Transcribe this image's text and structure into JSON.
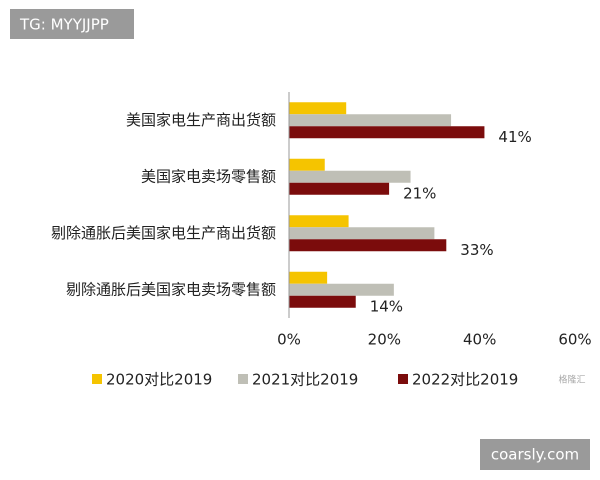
{
  "chart_data": {
    "type": "hbar",
    "categories": [
      "美国家电生产商出货额",
      "美国家电卖场零售额",
      "剔除通胀后美国家电生产商出货额",
      "剔除通胀后美国家电卖场零售额"
    ],
    "series": [
      {
        "name": "2020对比2019",
        "color": "#f5c400",
        "values": [
          12,
          7.5,
          12.5,
          8
        ]
      },
      {
        "name": "2021对比2019",
        "color": "#bfbfb6",
        "values": [
          34,
          25.5,
          30.5,
          22
        ]
      },
      {
        "name": "2022对比2019",
        "color": "#7b0c0c",
        "values": [
          41,
          21,
          33,
          14
        ],
        "value_labels": [
          "41%",
          "21%",
          "33%",
          "14%"
        ]
      }
    ],
    "xlim": [
      0,
      60
    ],
    "xticks": [
      {
        "value": 0,
        "label": "0%"
      },
      {
        "value": 20,
        "label": "20%"
      },
      {
        "value": 40,
        "label": "40%"
      },
      {
        "value": 60,
        "label": "60%"
      }
    ],
    "legend": "bottom"
  },
  "watermarks": [
    "TG: MYYJJPP",
    "coarsly.com",
    "格隆汇"
  ]
}
